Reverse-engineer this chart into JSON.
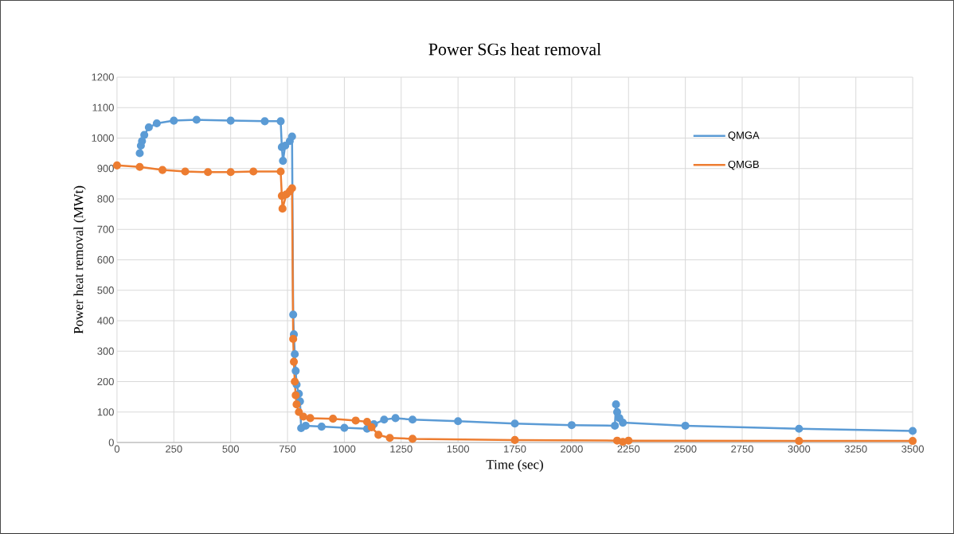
{
  "chart_data": {
    "type": "line",
    "title": "Power SGs heat removal",
    "xlabel": "Time (sec)",
    "ylabel": "Power heat removal (MWt)",
    "xlim": [
      0,
      3500
    ],
    "ylim": [
      0,
      1200
    ],
    "xticks": [
      0,
      250,
      500,
      750,
      1000,
      1250,
      1500,
      1750,
      2000,
      2250,
      2500,
      2750,
      3000,
      3250,
      3500
    ],
    "yticks": [
      0,
      100,
      200,
      300,
      400,
      500,
      600,
      700,
      800,
      900,
      1000,
      1100,
      1200
    ],
    "grid": true,
    "legend": "right",
    "marker": "circle",
    "line_style": "solid",
    "series": [
      {
        "name": "QMGA",
        "color": "#5b9bd5",
        "x": [
          100,
          105,
          110,
          120,
          140,
          175,
          250,
          350,
          500,
          650,
          720,
          725,
          730,
          740,
          760,
          770,
          775,
          778,
          782,
          786,
          790,
          800,
          805,
          810,
          830,
          900,
          1000,
          1100,
          1130,
          1175,
          1225,
          1300,
          1500,
          1750,
          2000,
          2190,
          2195,
          2200,
          2210,
          2225,
          2500,
          3000,
          3500
        ],
        "values": [
          950,
          975,
          990,
          1010,
          1035,
          1048,
          1057,
          1060,
          1057,
          1055,
          1055,
          970,
          925,
          975,
          990,
          1005,
          420,
          355,
          290,
          235,
          190,
          160,
          135,
          47,
          55,
          52,
          48,
          45,
          60,
          75,
          80,
          75,
          70,
          62,
          57,
          55,
          125,
          100,
          80,
          65,
          55,
          45,
          38
        ]
      },
      {
        "name": "QMGB",
        "color": "#ed7d31",
        "x": [
          0,
          100,
          200,
          300,
          400,
          500,
          600,
          720,
          725,
          728,
          745,
          760,
          770,
          775,
          778,
          782,
          786,
          790,
          800,
          820,
          850,
          950,
          1050,
          1100,
          1120,
          1150,
          1200,
          1300,
          1750,
          2200,
          2225,
          2250,
          3000,
          3500
        ],
        "values": [
          910,
          905,
          895,
          890,
          888,
          888,
          890,
          890,
          810,
          768,
          815,
          825,
          835,
          340,
          265,
          200,
          155,
          125,
          100,
          85,
          80,
          78,
          72,
          68,
          50,
          25,
          15,
          12,
          8,
          6,
          2,
          6,
          5,
          5
        ]
      }
    ]
  }
}
